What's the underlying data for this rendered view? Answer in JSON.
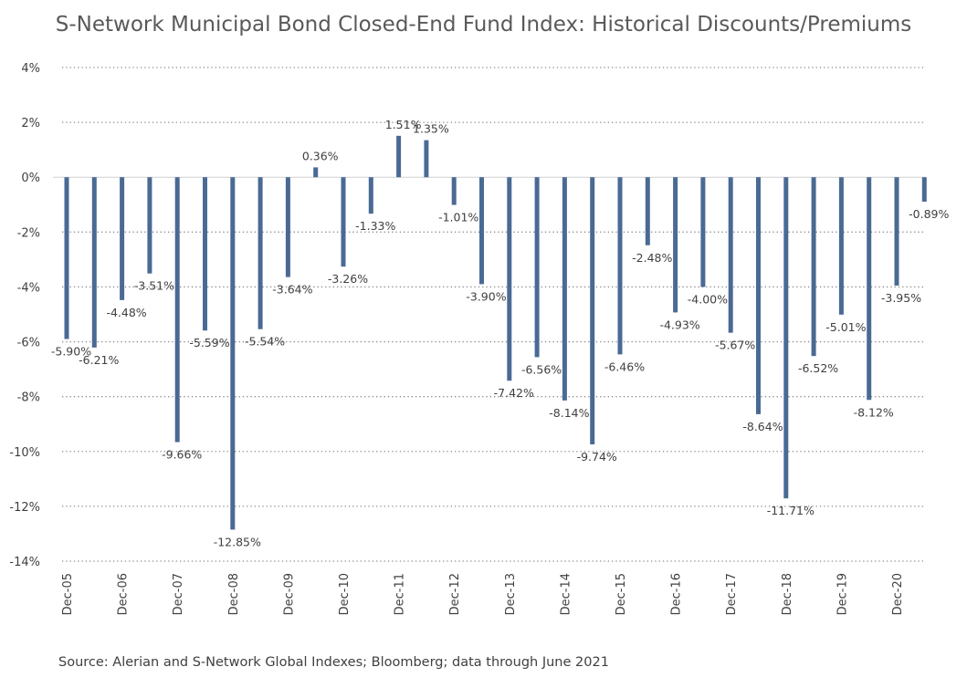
{
  "chart_data": {
    "type": "bar",
    "title": "S-Network Municipal Bond Closed-End Fund Index: Historical Discounts/Premiums",
    "xlabel": "",
    "ylabel": "",
    "ylim": [
      -14,
      4
    ],
    "yticks": [
      4,
      2,
      0,
      -2,
      -4,
      -6,
      -8,
      -10,
      -12,
      -14
    ],
    "ytick_labels": [
      "4%",
      "2%",
      "0%",
      "-2%",
      "-4%",
      "-6%",
      "-8%",
      "-10%",
      "-12%",
      "-14%"
    ],
    "grid": "horizontal dotted",
    "legend": "none",
    "bar_color": "#4a6a94",
    "categories": [
      "Dec-05",
      "Jun-06",
      "Dec-06",
      "Jun-07",
      "Dec-07",
      "Jun-08",
      "Dec-08",
      "Jun-09",
      "Dec-09",
      "Jun-10",
      "Dec-10",
      "Jun-11",
      "Dec-11",
      "Jun-12",
      "Dec-12",
      "Jun-13",
      "Dec-13",
      "Jun-14",
      "Dec-14",
      "Jun-15",
      "Dec-15",
      "Jun-16",
      "Dec-16",
      "Jun-17",
      "Dec-17",
      "Jun-18",
      "Dec-18",
      "Jun-19",
      "Dec-19",
      "Jun-20",
      "Dec-20",
      "Jun-21"
    ],
    "xtick_labels": [
      "Dec-05",
      "",
      "Dec-06",
      "",
      "Dec-07",
      "",
      "Dec-08",
      "",
      "Dec-09",
      "",
      "Dec-10",
      "",
      "Dec-11",
      "",
      "Dec-12",
      "",
      "Dec-13",
      "",
      "Dec-14",
      "",
      "Dec-15",
      "",
      "Dec-16",
      "",
      "Dec-17",
      "",
      "Dec-18",
      "",
      "Dec-19",
      "",
      "Dec-20",
      ""
    ],
    "values": [
      -5.9,
      -6.21,
      -4.48,
      -3.51,
      -9.66,
      -5.59,
      -12.85,
      -5.54,
      -3.64,
      0.36,
      -3.26,
      -1.33,
      1.51,
      1.35,
      -1.01,
      -3.9,
      -7.42,
      -6.56,
      -8.14,
      -9.74,
      -6.46,
      -2.48,
      -4.93,
      -4.0,
      -5.67,
      -8.64,
      -11.71,
      -6.52,
      -5.01,
      -8.12,
      -3.95,
      -0.89
    ],
    "data_labels": [
      "-5.90%",
      "-6.21%",
      "-4.48%",
      "-3.51%",
      "-9.66%",
      "-5.59%",
      "-12.85%",
      "-5.54%",
      "-3.64%",
      "0.36%",
      "-3.26%",
      "-1.33%",
      "1.51%",
      "1.35%",
      "-1.01%",
      "-3.90%",
      "-7.42%",
      "-6.56%",
      "-8.14%",
      "-9.74%",
      "-6.46%",
      "-2.48%",
      "-4.93%",
      "-4.00%",
      "-5.67%",
      "-8.64%",
      "-11.71%",
      "-6.52%",
      "-5.01%",
      "-8.12%",
      "-3.95%",
      "-0.89%"
    ]
  },
  "footer": {
    "source": "Source: Alerian and S-Network Global Indexes; Bloomberg; data through June 2021"
  }
}
